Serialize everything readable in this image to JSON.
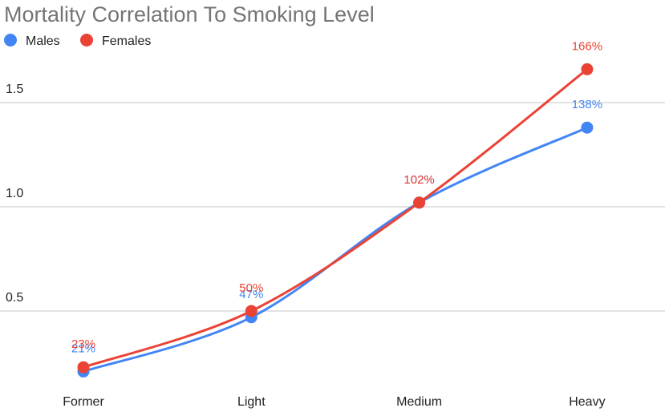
{
  "chart_data": {
    "type": "line",
    "title": "Mortality Correlation To Smoking Level",
    "xlabel": "",
    "ylabel": "",
    "categories": [
      "Former",
      "Light",
      "Medium",
      "Heavy"
    ],
    "ylim": [
      0,
      1.75
    ],
    "yticks": [
      "0.5",
      "1.0",
      "1.5"
    ],
    "ytick_values": [
      0.5,
      1.0,
      1.5
    ],
    "grid": true,
    "legend_position": "top-left",
    "smooth": true,
    "series": [
      {
        "name": "Males",
        "color": "#4285f4",
        "values": [
          0.21,
          0.47,
          1.02,
          1.38
        ],
        "labels": [
          "21%",
          "47%",
          "102%",
          "138%"
        ]
      },
      {
        "name": "Females",
        "color": "#ea4335",
        "values": [
          0.23,
          0.5,
          1.02,
          1.66
        ],
        "labels": [
          "23%",
          "50%",
          "102%",
          "166%"
        ]
      }
    ]
  }
}
